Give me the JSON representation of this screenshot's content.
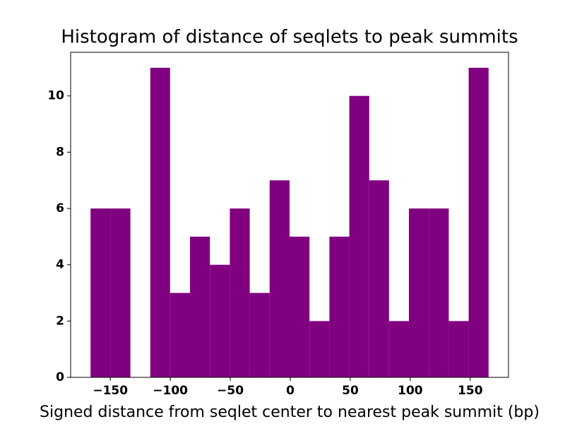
{
  "chart_data": {
    "type": "histogram",
    "title": "Histogram of distance of seqlets to peak summits",
    "x_label": "Signed distance from seqlet center to nearest peak summit (bp)",
    "bins": [
      -166.5,
      -149.9,
      -133.3,
      -116.7,
      -100.2,
      -83.6,
      -67.0,
      -50.4,
      -33.8,
      -17.2,
      -0.6,
      16.0,
      32.6,
      49.2,
      65.8,
      82.3,
      98.9,
      115.5,
      132.1,
      148.7,
      165.3
    ],
    "values": [
      6,
      6,
      0,
      11,
      3,
      5,
      4,
      6,
      3,
      7,
      5,
      2,
      5,
      10,
      7,
      2,
      6,
      6,
      2,
      11
    ],
    "color": "#800080",
    "xlim": [
      -183.1,
      181.9
    ],
    "xticks": [
      {
        "value": -150,
        "label": "−150"
      },
      {
        "value": -100,
        "label": "−100"
      },
      {
        "value": -50,
        "label": "−50"
      },
      0,
      50,
      100,
      150
    ],
    "ylim": [
      0,
      11.55
    ],
    "yticks": [
      0,
      2,
      4,
      6,
      8,
      10
    ],
    "grid": false
  }
}
